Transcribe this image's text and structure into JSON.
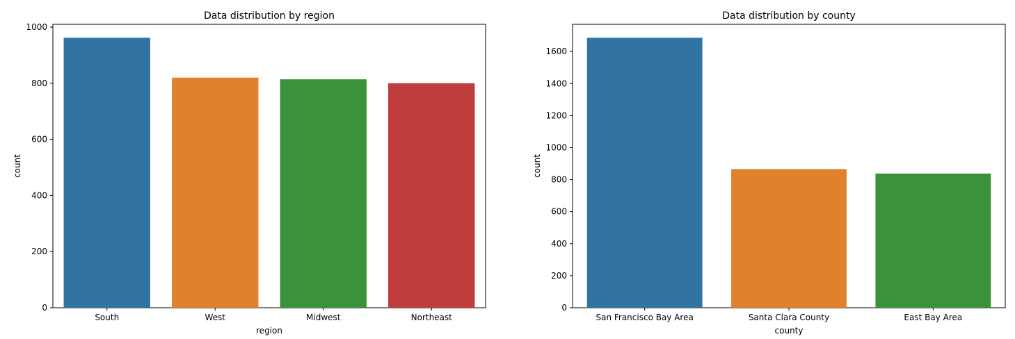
{
  "chart_data": [
    {
      "type": "bar",
      "title": "Data distribution by region",
      "xlabel": "region",
      "ylabel": "count",
      "categories": [
        "South",
        "West",
        "Midwest",
        "Northeast"
      ],
      "values": [
        962,
        820,
        814,
        800
      ],
      "colors": [
        "#3274a1",
        "#e1812c",
        "#3a923a",
        "#c03d3e"
      ],
      "ylim": [
        0,
        1010
      ],
      "yticks": [
        0,
        200,
        400,
        600,
        800,
        1000
      ],
      "grid": false,
      "legend": "none"
    },
    {
      "type": "bar",
      "title": "Data distribution by county",
      "xlabel": "county",
      "ylabel": "count",
      "categories": [
        "San Francisco Bay Area",
        "Santa Clara County",
        "East Bay Area"
      ],
      "values": [
        1686,
        866,
        838
      ],
      "colors": [
        "#3274a1",
        "#e1812c",
        "#3a923a"
      ],
      "ylim": [
        0,
        1770
      ],
      "yticks": [
        0,
        200,
        400,
        600,
        800,
        1000,
        1200,
        1400,
        1600
      ],
      "grid": false,
      "legend": "none"
    }
  ]
}
